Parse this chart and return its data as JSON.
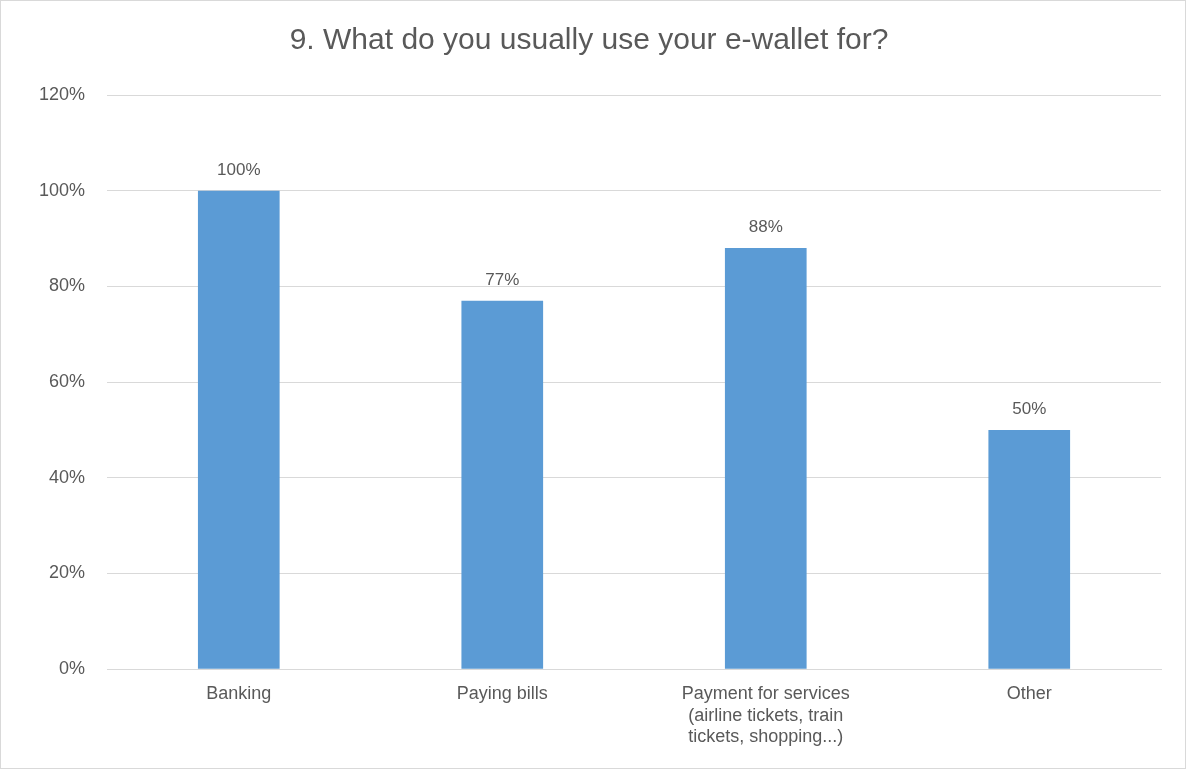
{
  "chart_data": {
    "type": "bar",
    "title": "9. What do you usually use your e-wallet for?",
    "categories": [
      "Banking",
      "Paying bills",
      "Payment for services (airline tickets, train tickets, shopping...)",
      "Other"
    ],
    "values": [
      100,
      77,
      88,
      50
    ],
    "value_labels": [
      "100%",
      "77%",
      "88%",
      "50%"
    ],
    "color": "#5b9bd5",
    "ylim": [
      0,
      120
    ],
    "yticks": [
      {
        "value": 0,
        "label": "0%"
      },
      {
        "value": 20,
        "label": "20%"
      },
      {
        "value": 40,
        "label": "40%"
      },
      {
        "value": 60,
        "label": "60%"
      },
      {
        "value": 80,
        "label": "80%"
      },
      {
        "value": 100,
        "label": "100%"
      },
      {
        "value": 120,
        "label": "120%"
      }
    ],
    "grid": "y",
    "legend": false
  }
}
